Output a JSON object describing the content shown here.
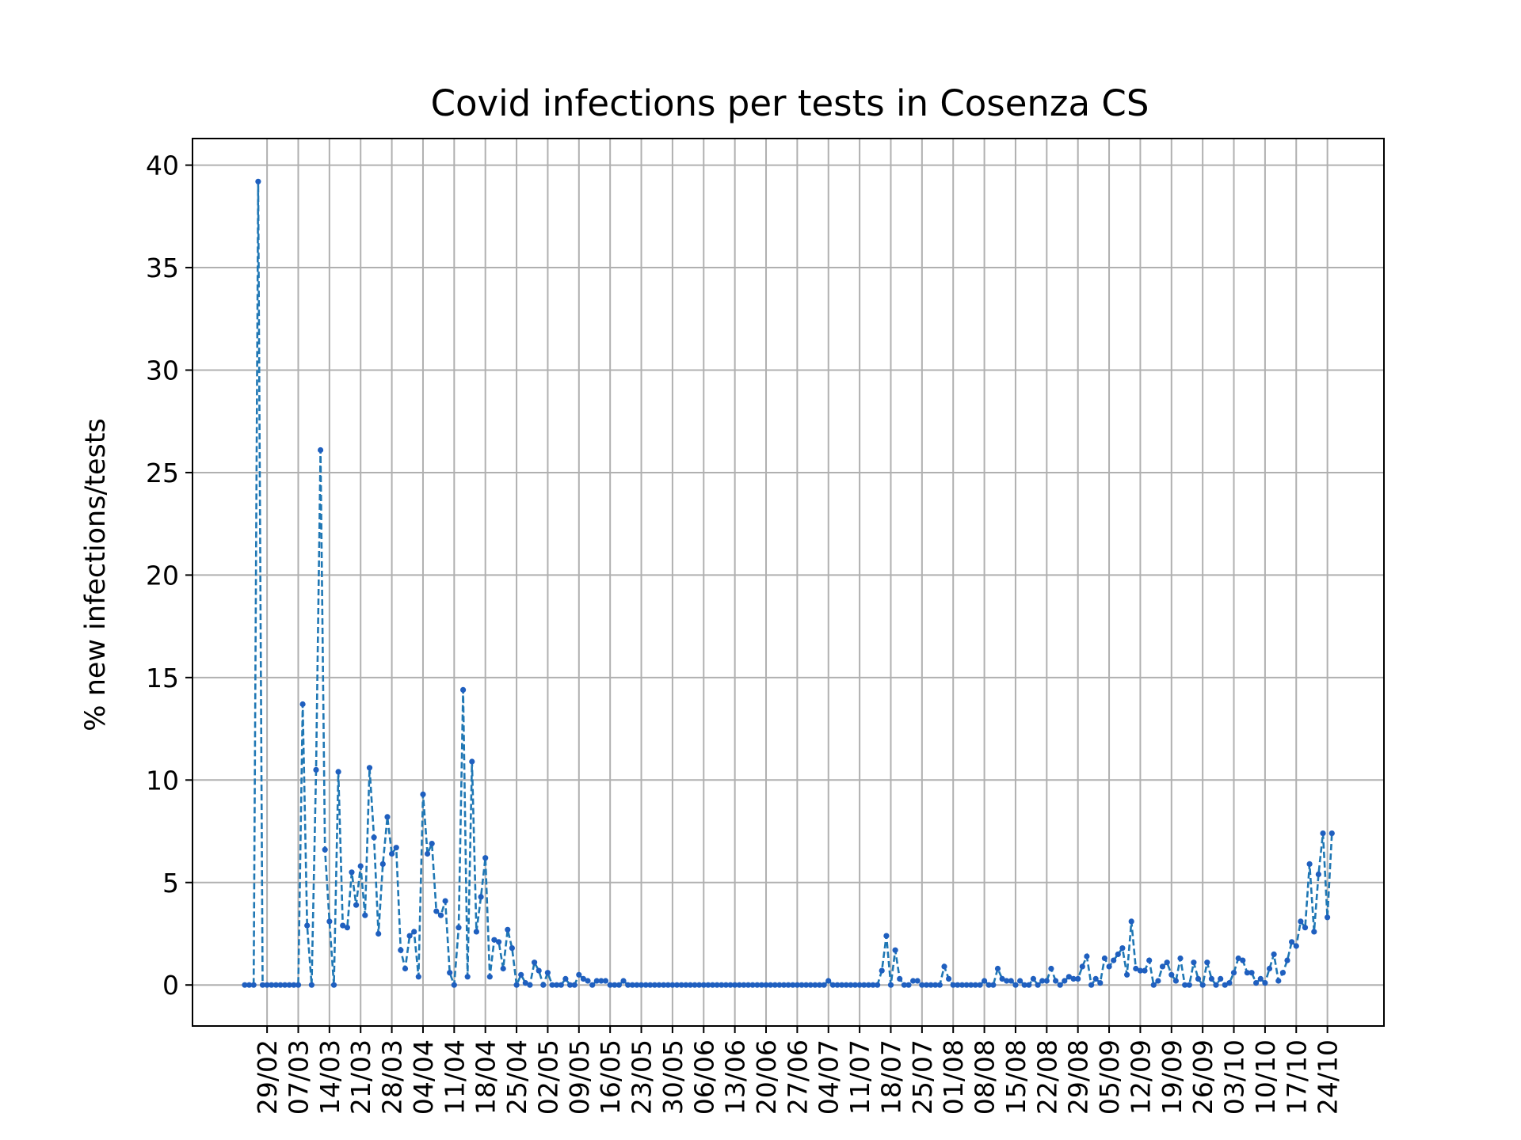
{
  "chart_data": {
    "type": "line",
    "title": "Covid infections per tests in Cosenza CS",
    "xlabel": "",
    "ylabel": "% new infections/tests",
    "ylim": [
      -2,
      41.5
    ],
    "yticks": [
      0,
      5,
      10,
      15,
      20,
      25,
      30,
      35,
      40
    ],
    "grid": true,
    "xtick_labels": [
      "29/02",
      "07/03",
      "14/03",
      "21/03",
      "28/03",
      "04/04",
      "11/04",
      "18/04",
      "25/04",
      "02/05",
      "09/05",
      "16/05",
      "23/05",
      "30/05",
      "06/06",
      "13/06",
      "20/06",
      "27/06",
      "04/07",
      "11/07",
      "18/07",
      "25/07",
      "01/08",
      "08/08",
      "15/08",
      "22/08",
      "29/08",
      "05/09",
      "12/09",
      "19/09",
      "26/09",
      "03/10",
      "10/10",
      "17/10",
      "24/10"
    ],
    "x_start": "24/02",
    "series": [
      {
        "color": "#1f77b4",
        "linestyle": "dashed",
        "marker": "point",
        "values": [
          0,
          0,
          0,
          39.2,
          0,
          0,
          0,
          0,
          0,
          0,
          0,
          0,
          0,
          13.7,
          2.9,
          0,
          10.5,
          26.1,
          6.6,
          3.1,
          0,
          10.4,
          2.9,
          2.8,
          5.5,
          3.9,
          5.8,
          3.4,
          10.6,
          7.2,
          2.5,
          5.9,
          8.2,
          6.4,
          6.7,
          1.7,
          0.8,
          2.4,
          2.6,
          0.4,
          9.3,
          6.4,
          6.9,
          3.6,
          3.4,
          4.1,
          0.6,
          0,
          2.8,
          14.4,
          0.4,
          10.9,
          2.6,
          4.3,
          6.2,
          0.4,
          2.2,
          2.1,
          0.8,
          2.7,
          1.8,
          0,
          0.5,
          0.1,
          0,
          1.1,
          0.7,
          0,
          0.6,
          0,
          0,
          0,
          0.3,
          0,
          0,
          0.5,
          0.3,
          0.2,
          0,
          0.2,
          0.2,
          0.2,
          0,
          0,
          0,
          0.2,
          0,
          0,
          0,
          0,
          0,
          0,
          0,
          0,
          0,
          0,
          0,
          0,
          0,
          0,
          0,
          0,
          0,
          0,
          0,
          0,
          0,
          0,
          0,
          0,
          0,
          0,
          0,
          0,
          0,
          0,
          0,
          0,
          0,
          0,
          0,
          0,
          0,
          0,
          0,
          0,
          0,
          0,
          0,
          0,
          0,
          0.2,
          0,
          0,
          0,
          0,
          0,
          0,
          0,
          0,
          0,
          0,
          0,
          0.7,
          2.4,
          0,
          1.7,
          0.3,
          0,
          0,
          0.2,
          0.2,
          0,
          0,
          0,
          0,
          0,
          0.9,
          0.3,
          0,
          0,
          0,
          0,
          0,
          0,
          0,
          0.2,
          0,
          0,
          0.8,
          0.3,
          0.2,
          0.2,
          0,
          0.2,
          0,
          0,
          0.3,
          0,
          0.2,
          0.2,
          0.8,
          0.2,
          0,
          0.2,
          0.4,
          0.3,
          0.3,
          0.9,
          1.4,
          0,
          0.3,
          0.1,
          1.3,
          0.9,
          1.2,
          1.5,
          1.8,
          0.5,
          3.1,
          0.8,
          0.7,
          0.7,
          1.2,
          0,
          0.2,
          0.9,
          1.1,
          0.5,
          0.2,
          1.3,
          0,
          0,
          1.1,
          0.3,
          0,
          1.1,
          0.3,
          0,
          0.3,
          0,
          0.1,
          0.6,
          1.3,
          1.2,
          0.6,
          0.6,
          0.1,
          0.3,
          0.1,
          0.8,
          1.5,
          0.2,
          0.6,
          1.2,
          2.1,
          1.9,
          3.1,
          2.8,
          5.9,
          2.6,
          5.4,
          7.4,
          3.3,
          7.4
        ]
      }
    ]
  }
}
